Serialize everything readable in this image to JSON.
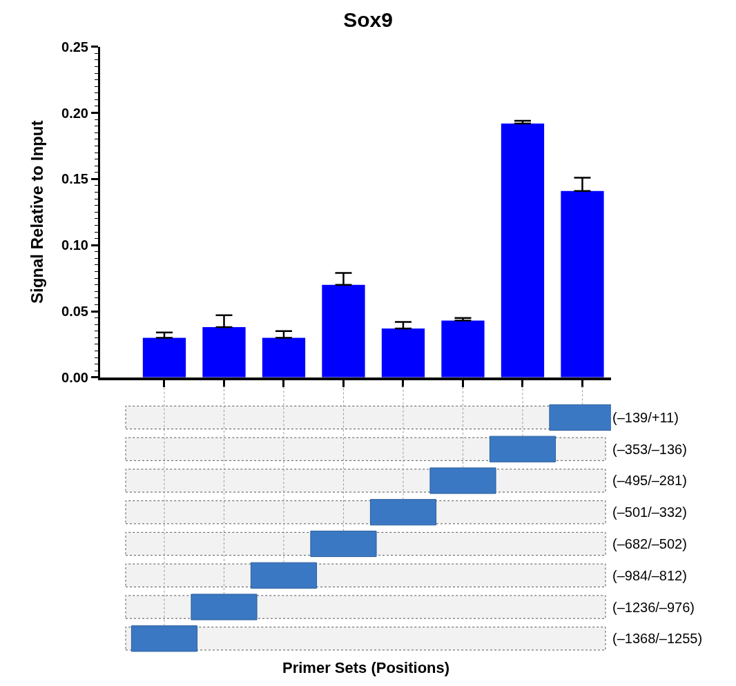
{
  "chart_data": {
    "type": "bar",
    "title": "Sox9",
    "ylabel": "Signal Relative to Input",
    "categories": [
      null,
      null,
      null,
      null,
      null,
      null,
      null,
      null
    ],
    "annotations": [
      "(–139/+11)",
      "(–353/–136)",
      "(–495/–281)",
      "(–501/–332)",
      "(–682/–502)",
      "(–984/–812)",
      "(–1236/–976)",
      "(–1368/–1255)",
      "Primer Sets (Positions)"
    ],
    "values": [
      0.03,
      0.038,
      0.03,
      0.07,
      0.037,
      0.043,
      0.192,
      0.141
    ],
    "errors": [
      [
        0.03,
        0.034
      ],
      [
        0.038,
        0.047
      ],
      [
        0.03,
        0.035
      ],
      [
        0.07,
        0.079
      ],
      [
        0.037,
        0.042
      ],
      [
        0.043,
        0.045
      ],
      [
        0.192,
        0.194
      ],
      [
        0.141,
        0.151
      ]
    ],
    "color": "#0000ff",
    "ylim": [
      0,
      0.25
    ],
    "yticks": [
      {
        "value": 0,
        "label": "0.00"
      },
      {
        "value": 0.05,
        "label": "0.05"
      },
      {
        "value": 0.1,
        "label": "0.10"
      },
      {
        "value": 0.15,
        "label": "0.15"
      },
      {
        "value": 0.2,
        "label": "0.20"
      },
      {
        "value": 0.25,
        "label": "0.25"
      }
    ],
    "tick_labels": "y"
  }
}
